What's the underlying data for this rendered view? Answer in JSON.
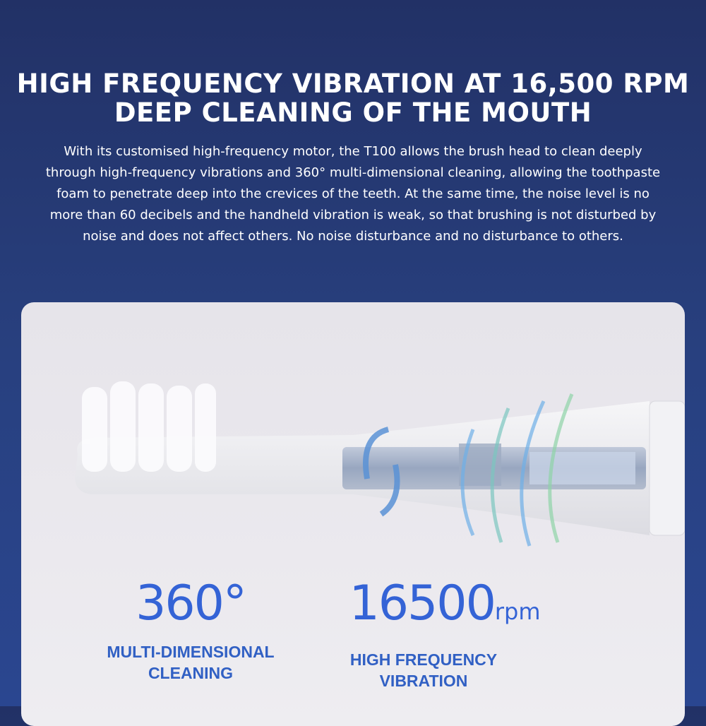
{
  "headline": {
    "line1": "HIGH FREQUENCY VIBRATION AT 16,500 RPM",
    "line2": "DEEP CLEANING OF THE MOUTH"
  },
  "description": "With its customised high-frequency motor, the T100 allows the brush head to clean deeply through high-frequency vibrations and 360° multi-dimensional cleaning, allowing the toothpaste foam to penetrate deep into the crevices of the teeth. At the same time, the noise level is no more than 60 decibels and the handheld vibration is weak, so that brushing is not disturbed by noise and does not affect others. No noise disturbance and no disturbance to others.",
  "stats": [
    {
      "value": "360°",
      "unit": "",
      "label1": "MULTI-DIMENSIONAL",
      "label2": "CLEANING"
    },
    {
      "value": "16500",
      "unit": "rpm",
      "label1": "HIGH FREQUENCY",
      "label2": "VIBRATION"
    }
  ],
  "colors": {
    "background": "#25386f",
    "card": "#e9e8ec",
    "accent": "#3463d6",
    "label": "#3160c4"
  },
  "icons": [
    "rotation-arrows-icon",
    "vibration-waves-icon"
  ]
}
